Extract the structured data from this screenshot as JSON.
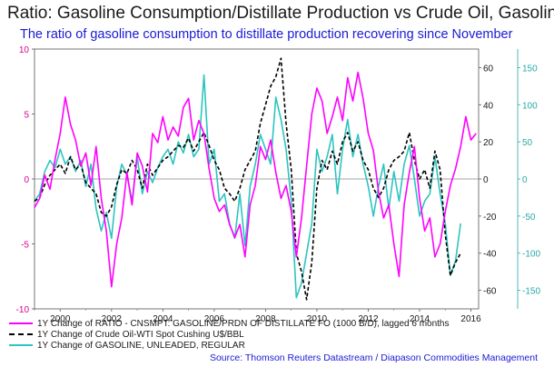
{
  "title": "Ratio: Gasoline Consumption/Distillate Production vs Crude Oil, Gasoline",
  "subtitle": "The ratio of gasoline consumption to distillate production recovering since November",
  "source": "Source: Thomson Reuters Datastream / Diapason Commodities Management",
  "chart_data": {
    "type": "line",
    "x_ticks": [
      "2000",
      "2002",
      "2004",
      "2006",
      "2008",
      "2010",
      "2012",
      "2014",
      "2016"
    ],
    "xlim": [
      1999.0,
      2016.3
    ],
    "y_axes": {
      "left": {
        "ylim": [
          -10,
          10
        ],
        "ticks": [
          -10,
          -5,
          0,
          5,
          10
        ],
        "color": "#e00090"
      },
      "right1": {
        "ylim": [
          -70,
          70
        ],
        "ticks": [
          -60,
          -40,
          -20,
          0,
          20,
          40,
          60
        ],
        "color": "#1a1a1a"
      },
      "right2": {
        "ylim": [
          -175,
          175
        ],
        "ticks": [
          -150,
          -100,
          -50,
          0,
          50,
          100,
          150
        ],
        "color": "#2aa8a8"
      }
    },
    "grid": false,
    "series": [
      {
        "name": "1Y Change of RATIO - CNSMPT: GASOLINE/PRDN OF DISTILLATE FO (1000 B/D), lagged 6 months",
        "axis": "left",
        "color": "#ff00ff",
        "dash": "",
        "x": [
          1999.0,
          1999.2,
          1999.4,
          1999.6,
          1999.8,
          2000.0,
          2000.2,
          2000.4,
          2000.6,
          2000.8,
          2001.0,
          2001.2,
          2001.4,
          2001.6,
          2001.8,
          2002.0,
          2002.2,
          2002.4,
          2002.6,
          2002.8,
          2003.0,
          2003.2,
          2003.4,
          2003.6,
          2003.8,
          2004.0,
          2004.2,
          2004.4,
          2004.6,
          2004.8,
          2005.0,
          2005.2,
          2005.4,
          2005.6,
          2005.8,
          2006.0,
          2006.2,
          2006.4,
          2006.6,
          2006.8,
          2007.0,
          2007.2,
          2007.4,
          2007.6,
          2007.8,
          2008.0,
          2008.2,
          2008.4,
          2008.6,
          2008.8,
          2009.0,
          2009.2,
          2009.4,
          2009.6,
          2009.8,
          2010.0,
          2010.2,
          2010.4,
          2010.6,
          2010.8,
          2011.0,
          2011.2,
          2011.4,
          2011.6,
          2011.8,
          2012.0,
          2012.2,
          2012.4,
          2012.6,
          2012.8,
          2013.0,
          2013.2,
          2013.4,
          2013.6,
          2013.8,
          2014.0,
          2014.2,
          2014.4,
          2014.6,
          2014.8,
          2015.0,
          2015.2,
          2015.4,
          2015.6,
          2015.8,
          2016.0,
          2016.2
        ],
        "y": [
          -2.2,
          -1.5,
          0.3,
          -0.8,
          1.5,
          3.5,
          6.3,
          4.2,
          3.0,
          1.0,
          2.0,
          -0.5,
          2.5,
          -1.5,
          -4.0,
          -8.3,
          -5.0,
          -3.0,
          0.5,
          -2.0,
          2.0,
          1.0,
          -1.0,
          3.5,
          2.8,
          4.8,
          3.0,
          4.0,
          3.3,
          5.5,
          6.2,
          3.0,
          4.5,
          3.5,
          0.8,
          -1.5,
          -2.5,
          -2.0,
          -3.5,
          -4.5,
          -3.5,
          -6.0,
          -2.0,
          -0.5,
          2.5,
          1.5,
          3.0,
          0.5,
          -1.5,
          -0.5,
          -2.5,
          -6.0,
          -3.0,
          1.0,
          5.0,
          7.0,
          6.0,
          3.5,
          4.8,
          6.3,
          4.5,
          7.8,
          6.0,
          8.2,
          6.2,
          3.5,
          2.2,
          -1.0,
          -3.0,
          -2.0,
          -5.0,
          -7.5,
          -2.0,
          0.5,
          2.5,
          -1.5,
          -4.0,
          -3.0,
          -6.0,
          -5.0,
          -2.5,
          -0.5,
          0.8,
          2.5,
          4.8,
          3.0,
          3.5
        ]
      },
      {
        "name": "1Y Change of Crude Oil-WTI Spot Cushing U$/BBL",
        "axis": "right1",
        "color": "#000000",
        "dash": "4,2.5",
        "x": [
          1999.0,
          1999.2,
          1999.4,
          1999.6,
          1999.8,
          2000.0,
          2000.2,
          2000.4,
          2000.6,
          2000.8,
          2001.0,
          2001.2,
          2001.4,
          2001.6,
          2001.8,
          2002.0,
          2002.2,
          2002.4,
          2002.6,
          2002.8,
          2003.0,
          2003.2,
          2003.4,
          2003.6,
          2003.8,
          2004.0,
          2004.2,
          2004.4,
          2004.6,
          2004.8,
          2005.0,
          2005.2,
          2005.4,
          2005.6,
          2005.8,
          2006.0,
          2006.2,
          2006.4,
          2006.6,
          2006.8,
          2007.0,
          2007.2,
          2007.4,
          2007.6,
          2007.8,
          2008.0,
          2008.2,
          2008.4,
          2008.6,
          2008.8,
          2009.0,
          2009.2,
          2009.4,
          2009.6,
          2009.8,
          2010.0,
          2010.2,
          2010.4,
          2010.6,
          2010.8,
          2011.0,
          2011.2,
          2011.4,
          2011.6,
          2011.8,
          2012.0,
          2012.2,
          2012.4,
          2012.6,
          2012.8,
          2013.0,
          2013.2,
          2013.4,
          2013.6,
          2013.8,
          2014.0,
          2014.2,
          2014.4,
          2014.6,
          2014.8,
          2015.0,
          2015.2,
          2015.4,
          2015.6
        ],
        "y": [
          -12,
          -10,
          -3,
          2,
          5,
          8,
          3,
          12,
          5,
          8,
          -2,
          -5,
          -8,
          -18,
          -20,
          -15,
          -3,
          5,
          3,
          10,
          5,
          -5,
          8,
          2,
          6,
          10,
          12,
          15,
          18,
          17,
          22,
          15,
          20,
          25,
          18,
          10,
          5,
          -5,
          -8,
          -12,
          -5,
          5,
          10,
          15,
          30,
          40,
          50,
          55,
          65,
          30,
          5,
          -40,
          -50,
          -65,
          -45,
          -5,
          10,
          5,
          15,
          8,
          20,
          25,
          15,
          20,
          10,
          5,
          -5,
          -10,
          -5,
          5,
          10,
          12,
          15,
          25,
          10,
          0,
          5,
          -5,
          15,
          5,
          -30,
          -52,
          -45,
          -40
        ]
      },
      {
        "name": "1Y Change of GASOLINE, UNLEADED, REGULAR",
        "axis": "right2",
        "color": "#2ec4c0",
        "dash": "",
        "x": [
          1999.0,
          1999.2,
          1999.4,
          1999.6,
          1999.8,
          2000.0,
          2000.2,
          2000.4,
          2000.6,
          2000.8,
          2001.0,
          2001.2,
          2001.4,
          2001.6,
          2001.8,
          2002.0,
          2002.2,
          2002.4,
          2002.6,
          2002.8,
          2003.0,
          2003.2,
          2003.4,
          2003.6,
          2003.8,
          2004.0,
          2004.2,
          2004.4,
          2004.6,
          2004.8,
          2005.0,
          2005.2,
          2005.4,
          2005.6,
          2005.8,
          2006.0,
          2006.2,
          2006.4,
          2006.6,
          2006.8,
          2007.0,
          2007.2,
          2007.4,
          2007.6,
          2007.8,
          2008.0,
          2008.2,
          2008.4,
          2008.6,
          2008.8,
          2009.0,
          2009.2,
          2009.4,
          2009.6,
          2009.8,
          2010.0,
          2010.2,
          2010.4,
          2010.6,
          2010.8,
          2011.0,
          2011.2,
          2011.4,
          2011.6,
          2011.8,
          2012.0,
          2012.2,
          2012.4,
          2012.6,
          2012.8,
          2013.0,
          2013.2,
          2013.4,
          2013.6,
          2013.8,
          2014.0,
          2014.2,
          2014.4,
          2014.6,
          2014.8,
          2015.0,
          2015.2,
          2015.4,
          2015.6
        ],
        "y": [
          -30,
          -20,
          10,
          25,
          15,
          40,
          20,
          30,
          10,
          25,
          -10,
          20,
          -40,
          -70,
          -45,
          -80,
          -10,
          20,
          5,
          -30,
          30,
          -20,
          10,
          -5,
          15,
          30,
          40,
          20,
          50,
          35,
          60,
          30,
          40,
          140,
          20,
          40,
          -30,
          -20,
          -60,
          -80,
          -20,
          -90,
          -10,
          20,
          60,
          40,
          20,
          110,
          80,
          40,
          -30,
          -160,
          -140,
          -100,
          -60,
          40,
          10,
          30,
          60,
          -20,
          40,
          80,
          30,
          60,
          20,
          -10,
          -50,
          -10,
          20,
          -40,
          10,
          -30,
          20,
          45,
          0,
          -50,
          -30,
          -20,
          30,
          -20,
          -60,
          -130,
          -110,
          -60
        ]
      }
    ]
  },
  "legend": [
    {
      "label": "1Y Change of RATIO - CNSMPT: GASOLINE/PRDN OF DISTILLATE FO (1000 B/D), lagged 6 months",
      "color": "#ff00ff",
      "style": "solid"
    },
    {
      "label": "1Y Change of Crude Oil-WTI Spot Cushing U$/BBL",
      "color": "#000000",
      "style": "dashed"
    },
    {
      "label": "1Y Change of GASOLINE, UNLEADED, REGULAR",
      "color": "#2ec4c0",
      "style": "solid"
    }
  ]
}
